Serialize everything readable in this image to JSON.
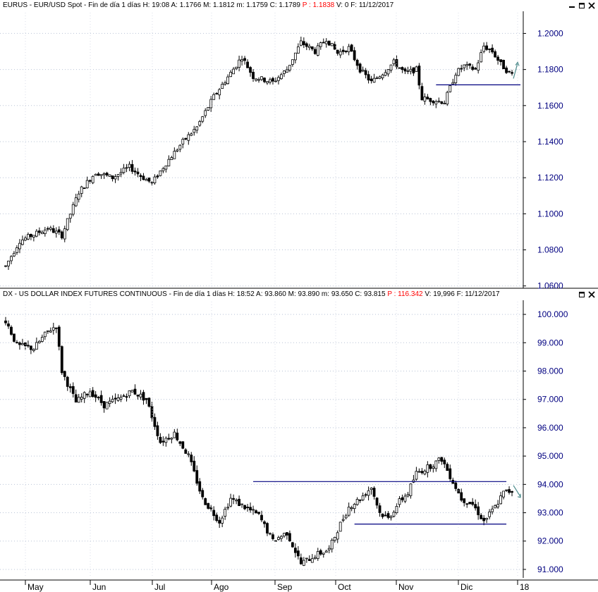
{
  "header_top": {
    "symbol": "EURUS",
    "name": "EUR/USD Spot",
    "period": "Fin de día 1 días",
    "fields": [
      {
        "k": "H:",
        "v": "19:08"
      },
      {
        "k": "A:",
        "v": "1.1766"
      },
      {
        "k": "M:",
        "v": "1.1812"
      },
      {
        "k": "m:",
        "v": "1.1759"
      },
      {
        "k": "C:",
        "v": "1.1789"
      }
    ],
    "p_label": "P :",
    "p_value": "1.1838",
    "v_label": "V:",
    "v_value": "0",
    "f_label": "F:",
    "f_value": "11/12/2017"
  },
  "header_bottom": {
    "symbol": "DX",
    "name": "US DOLLAR INDEX FUTURES CONTINUOUS",
    "period": "Fin de día 1 días",
    "fields": [
      {
        "k": "H:",
        "v": "18:52"
      },
      {
        "k": "A:",
        "v": "93.860"
      },
      {
        "k": "M:",
        "v": "93.890"
      },
      {
        "k": "m:",
        "v": "93.650"
      },
      {
        "k": "C:",
        "v": "93.815"
      }
    ],
    "p_label": "P :",
    "p_value": "116.342",
    "v_label": "V:",
    "v_value": "19,996",
    "f_label": "F:",
    "f_value": "11/12/2017"
  },
  "colors": {
    "axis": "#000080",
    "line": "#000080",
    "bars": "#000000",
    "price_red": "#ff0000",
    "arrow": "#4a8a8a"
  },
  "chart_data": [
    {
      "type": "candlestick",
      "series": "EUR/USD Spot",
      "yticks": [
        "1.2000",
        "1.1800",
        "1.1600",
        "1.1400",
        "1.1200",
        "1.1000",
        "1.0800",
        "1.0600"
      ],
      "ylim": [
        1.0595,
        1.2115
      ],
      "x_months": [
        "May",
        "Jun",
        "Jul",
        "Ago",
        "Sep",
        "Oct",
        "Nov",
        "Dic",
        "18"
      ],
      "anchors": [
        [
          0,
          1.071
        ],
        [
          5,
          1.085
        ],
        [
          15,
          1.092
        ],
        [
          20,
          1.088
        ],
        [
          26,
          1.112
        ],
        [
          32,
          1.123
        ],
        [
          38,
          1.12
        ],
        [
          44,
          1.126
        ],
        [
          48,
          1.121
        ],
        [
          52,
          1.117
        ],
        [
          57,
          1.128
        ],
        [
          63,
          1.14
        ],
        [
          68,
          1.148
        ],
        [
          74,
          1.165
        ],
        [
          80,
          1.178
        ],
        [
          84,
          1.187
        ],
        [
          88,
          1.176
        ],
        [
          95,
          1.173
        ],
        [
          100,
          1.18
        ],
        [
          105,
          1.195
        ],
        [
          110,
          1.19
        ],
        [
          114,
          1.197
        ],
        [
          118,
          1.189
        ],
        [
          122,
          1.192
        ],
        [
          126,
          1.18
        ],
        [
          130,
          1.173
        ],
        [
          134,
          1.178
        ],
        [
          138,
          1.184
        ],
        [
          142,
          1.178
        ],
        [
          146,
          1.18
        ],
        [
          148,
          1.164
        ],
        [
          152,
          1.163
        ],
        [
          156,
          1.162
        ],
        [
          160,
          1.178
        ],
        [
          163,
          1.182
        ],
        [
          167,
          1.18
        ],
        [
          170,
          1.193
        ],
        [
          173,
          1.19
        ],
        [
          176,
          1.183
        ],
        [
          179,
          1.178
        ],
        [
          181,
          1.177
        ]
      ],
      "support_line": 1.1715,
      "last_close": 1.1789
    },
    {
      "type": "candlestick",
      "series": "US DOLLAR INDEX FUTURES CONTINUOUS",
      "yticks": [
        "100.000",
        "99.000",
        "98.000",
        "97.000",
        "96.000",
        "95.000",
        "94.000",
        "93.000",
        "92.000",
        "91.000"
      ],
      "ylim": [
        90.75,
        100.45
      ],
      "x_months": [
        "May",
        "Jun",
        "Jul",
        "Ago",
        "Sep",
        "Oct",
        "Nov",
        "Dic",
        "18"
      ],
      "anchors": [
        [
          0,
          99.8
        ],
        [
          4,
          98.9
        ],
        [
          10,
          98.8
        ],
        [
          15,
          99.4
        ],
        [
          18,
          99.6
        ],
        [
          20,
          98.0
        ],
        [
          25,
          96.9
        ],
        [
          30,
          97.3
        ],
        [
          35,
          96.8
        ],
        [
          40,
          97.0
        ],
        [
          45,
          97.3
        ],
        [
          50,
          97.0
        ],
        [
          55,
          95.5
        ],
        [
          60,
          95.8
        ],
        [
          65,
          95.0
        ],
        [
          70,
          93.5
        ],
        [
          76,
          92.7
        ],
        [
          80,
          93.5
        ],
        [
          85,
          93.2
        ],
        [
          90,
          92.9
        ],
        [
          95,
          92.0
        ],
        [
          100,
          92.3
        ],
        [
          105,
          91.2
        ],
        [
          110,
          91.5
        ],
        [
          115,
          91.7
        ],
        [
          118,
          92.4
        ],
        [
          122,
          93.2
        ],
        [
          126,
          93.5
        ],
        [
          130,
          93.9
        ],
        [
          133,
          93.0
        ],
        [
          136,
          92.8
        ],
        [
          140,
          93.4
        ],
        [
          143,
          93.7
        ],
        [
          146,
          94.4
        ],
        [
          150,
          94.6
        ],
        [
          155,
          94.9
        ],
        [
          158,
          94.3
        ],
        [
          162,
          93.5
        ],
        [
          166,
          93.3
        ],
        [
          170,
          92.7
        ],
        [
          174,
          93.2
        ],
        [
          177,
          93.7
        ],
        [
          181,
          93.8
        ]
      ],
      "resistance_line": 94.1,
      "support_line": 92.6,
      "last_close": 93.815
    }
  ]
}
